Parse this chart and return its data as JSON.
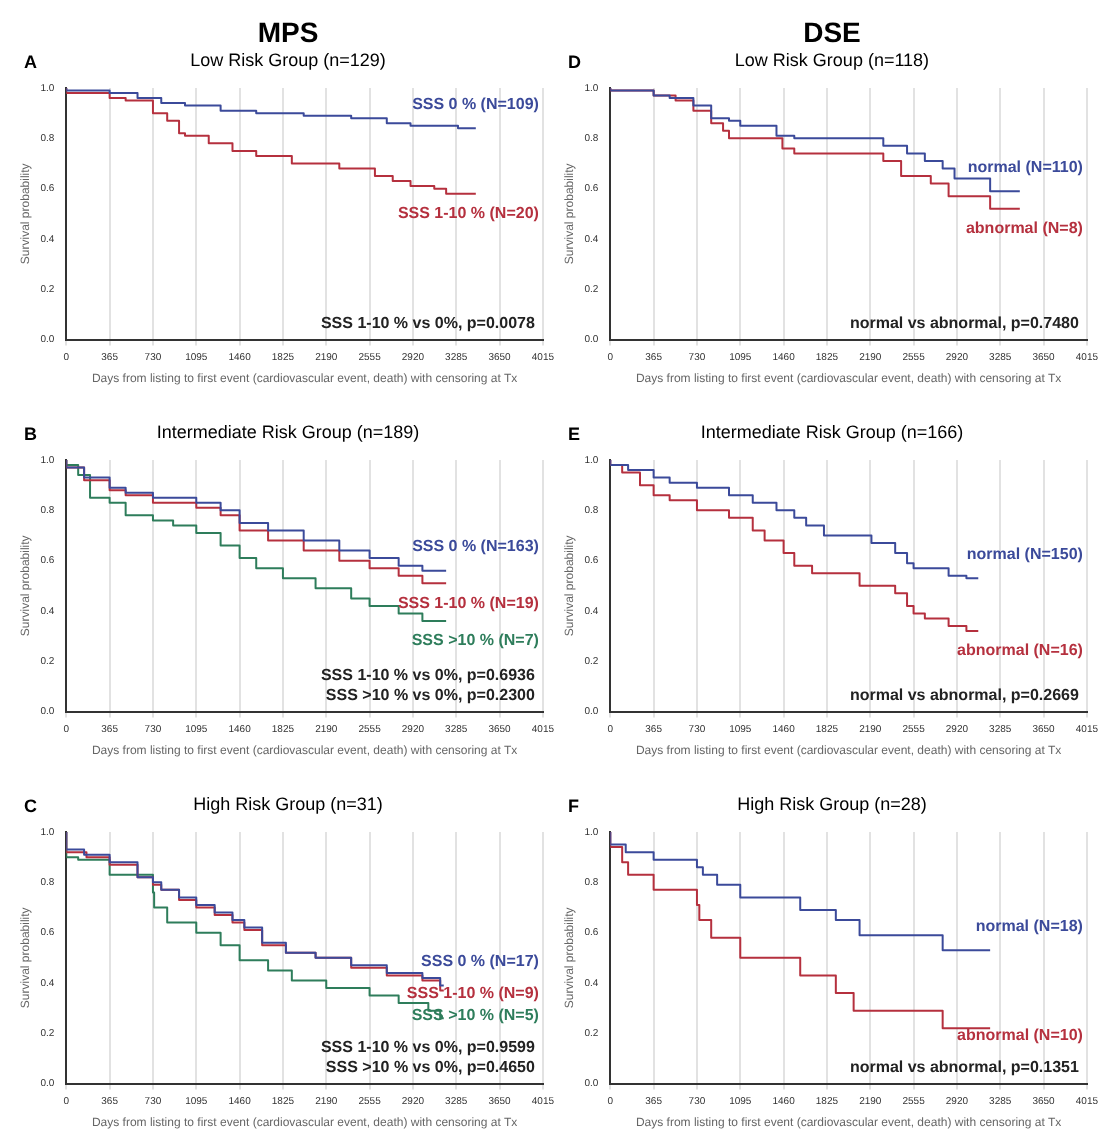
{
  "chart_data": [
    {
      "type": "step",
      "title": "MPS",
      "subtitle": "Low Risk Group (n=129)",
      "xlabel": "Days from listing to first event (cardiovascular event, death) with censoring at Tx",
      "ylabel": "Survival probability",
      "annotations": [
        "A",
        "SSS 1-10 % vs 0%, p=0.0078"
      ],
      "xlim": [
        0,
        4015
      ],
      "xticks": [
        0,
        365,
        730,
        1095,
        1460,
        1825,
        2190,
        2555,
        2920,
        3285,
        3650,
        4015
      ],
      "ylim": [
        0,
        1
      ],
      "yticks": [
        {
          "value": 0,
          "label": "0.0"
        },
        {
          "value": 0.2,
          "label": "0.2"
        },
        {
          "value": 0.4,
          "label": "0.4"
        },
        {
          "value": 0.6,
          "label": "0.6"
        },
        {
          "value": 0.8,
          "label": "0.8"
        },
        {
          "value": 1,
          "label": "1.0"
        }
      ],
      "grid": "x",
      "series": [
        {
          "name": "SSS 0 % (N=109)",
          "color": "#3b4a9a",
          "x": [
            0,
            365,
            600,
            800,
            1000,
            1300,
            1600,
            2000,
            2400,
            2700,
            2900,
            3100,
            3300,
            3450
          ],
          "values": [
            1,
            0.99,
            0.98,
            0.96,
            0.94,
            0.93,
            0.91,
            0.9,
            0.89,
            0.88,
            0.86,
            0.85,
            0.85,
            0.84
          ]
        },
        {
          "name": "SSS 1-10 % (N=20)",
          "color": "#b5303e",
          "x": [
            0,
            365,
            500,
            730,
            850,
            950,
            1000,
            1200,
            1400,
            1600,
            1900,
            2300,
            2600,
            2750,
            2900,
            3100,
            3200,
            3450
          ],
          "values": [
            1,
            0.98,
            0.96,
            0.95,
            0.9,
            0.87,
            0.82,
            0.81,
            0.78,
            0.75,
            0.73,
            0.7,
            0.68,
            0.65,
            0.63,
            0.61,
            0.6,
            0.58
          ]
        }
      ]
    },
    {
      "type": "step",
      "title": "DSE",
      "subtitle": "Low Risk Group (n=118)",
      "xlabel": "Days from listing to first event (cardiovascular event, death) with censoring at Tx",
      "ylabel": "Survival probability",
      "annotations": [
        "D",
        "normal vs abnormal, p=0.7480"
      ],
      "xlim": [
        0,
        4015
      ],
      "xticks": [
        0,
        365,
        730,
        1095,
        1460,
        1825,
        2190,
        2555,
        2920,
        3285,
        3650,
        4015
      ],
      "ylim": [
        0,
        1
      ],
      "yticks": [
        {
          "value": 0,
          "label": "0.0"
        },
        {
          "value": 0.2,
          "label": "0.2"
        },
        {
          "value": 0.4,
          "label": "0.4"
        },
        {
          "value": 0.6,
          "label": "0.6"
        },
        {
          "value": 0.8,
          "label": "0.8"
        },
        {
          "value": 1,
          "label": "1.0"
        }
      ],
      "grid": "x",
      "series": [
        {
          "name": "normal (N=110)",
          "color": "#3b4a9a",
          "x": [
            0,
            365,
            500,
            700,
            850,
            1000,
            1095,
            1400,
            1550,
            2300,
            2500,
            2650,
            2800,
            2900,
            3200,
            3450
          ],
          "values": [
            1,
            0.99,
            0.97,
            0.96,
            0.93,
            0.88,
            0.87,
            0.85,
            0.81,
            0.8,
            0.77,
            0.74,
            0.71,
            0.68,
            0.64,
            0.59
          ]
        },
        {
          "name": "abnormal (N=8)",
          "color": "#b5303e",
          "x": [
            0,
            365,
            550,
            700,
            850,
            950,
            1000,
            1450,
            1550,
            2300,
            2450,
            2700,
            2850,
            3200,
            3450
          ],
          "values": [
            1,
            0.99,
            0.97,
            0.95,
            0.91,
            0.86,
            0.83,
            0.8,
            0.76,
            0.74,
            0.71,
            0.65,
            0.62,
            0.57,
            0.52
          ]
        }
      ]
    },
    {
      "type": "step",
      "subtitle": "Intermediate Risk Group (n=189)",
      "xlabel": "Days from listing to first event (cardiovascular event, death) with censoring at Tx",
      "ylabel": "Survival probability",
      "annotations": [
        "B",
        "SSS 1-10 % vs 0%, p=0.6936",
        "SSS >10 % vs 0%, p=0.2300"
      ],
      "xlim": [
        0,
        4015
      ],
      "xticks": [
        0,
        365,
        730,
        1095,
        1460,
        1825,
        2190,
        2555,
        2920,
        3285,
        3650,
        4015
      ],
      "ylim": [
        0,
        1
      ],
      "yticks": [
        {
          "value": 0,
          "label": "0.0"
        },
        {
          "value": 0.2,
          "label": "0.2"
        },
        {
          "value": 0.4,
          "label": "0.4"
        },
        {
          "value": 0.6,
          "label": "0.6"
        },
        {
          "value": 0.8,
          "label": "0.8"
        },
        {
          "value": 1,
          "label": "1.0"
        }
      ],
      "grid": "x",
      "series": [
        {
          "name": "SSS 0 % (N=163)",
          "color": "#3b4a9a",
          "x": [
            0,
            150,
            365,
            500,
            730,
            1095,
            1300,
            1460,
            1700,
            2000,
            2300,
            2555,
            2800,
            3000,
            3200
          ],
          "values": [
            1,
            0.97,
            0.93,
            0.89,
            0.87,
            0.85,
            0.83,
            0.8,
            0.75,
            0.72,
            0.68,
            0.64,
            0.61,
            0.58,
            0.56
          ]
        },
        {
          "name": "SSS 1-10 % (N=19)",
          "color": "#b5303e",
          "x": [
            0,
            150,
            365,
            500,
            730,
            1095,
            1300,
            1460,
            1700,
            2000,
            2300,
            2555,
            2800,
            3000,
            3200
          ],
          "values": [
            1,
            0.97,
            0.92,
            0.88,
            0.86,
            0.83,
            0.81,
            0.78,
            0.72,
            0.68,
            0.64,
            0.6,
            0.57,
            0.54,
            0.51
          ]
        },
        {
          "name": "SSS >10 % (N=7)",
          "color": "#2e7d5b",
          "x": [
            0,
            100,
            200,
            365,
            500,
            730,
            900,
            1095,
            1300,
            1460,
            1600,
            1825,
            2100,
            2400,
            2555,
            2800,
            3000,
            3200
          ],
          "values": [
            1,
            0.98,
            0.94,
            0.85,
            0.83,
            0.78,
            0.76,
            0.74,
            0.71,
            0.66,
            0.61,
            0.57,
            0.53,
            0.49,
            0.45,
            0.42,
            0.39,
            0.36
          ]
        }
      ]
    },
    {
      "type": "step",
      "subtitle": "Intermediate Risk Group (n=166)",
      "xlabel": "Days from listing to first event (cardiovascular event, death) with censoring at Tx",
      "ylabel": "Survival probability",
      "annotations": [
        "E",
        "normal vs abnormal, p=0.2669"
      ],
      "xlim": [
        0,
        4015
      ],
      "xticks": [
        0,
        365,
        730,
        1095,
        1460,
        1825,
        2190,
        2555,
        2920,
        3285,
        3650,
        4015
      ],
      "ylim": [
        0,
        1
      ],
      "yticks": [
        {
          "value": 0,
          "label": "0.0"
        },
        {
          "value": 0.2,
          "label": "0.2"
        },
        {
          "value": 0.4,
          "label": "0.4"
        },
        {
          "value": 0.6,
          "label": "0.6"
        },
        {
          "value": 0.8,
          "label": "0.8"
        },
        {
          "value": 1,
          "label": "1.0"
        }
      ],
      "grid": "x",
      "series": [
        {
          "name": "normal (N=150)",
          "color": "#3b4a9a",
          "x": [
            0,
            150,
            365,
            500,
            730,
            1000,
            1200,
            1400,
            1550,
            1650,
            1800,
            2200,
            2400,
            2500,
            2555,
            2850,
            3000,
            3100
          ],
          "values": [
            1,
            0.98,
            0.96,
            0.93,
            0.91,
            0.89,
            0.86,
            0.83,
            0.8,
            0.77,
            0.74,
            0.7,
            0.67,
            0.63,
            0.59,
            0.57,
            0.54,
            0.53
          ]
        },
        {
          "name": "abnormal (N=16)",
          "color": "#b5303e",
          "x": [
            0,
            100,
            250,
            365,
            500,
            730,
            1000,
            1200,
            1300,
            1460,
            1550,
            1700,
            2100,
            2400,
            2500,
            2555,
            2650,
            2850,
            3000,
            3100
          ],
          "values": [
            1,
            0.98,
            0.95,
            0.9,
            0.86,
            0.84,
            0.8,
            0.77,
            0.72,
            0.68,
            0.63,
            0.58,
            0.55,
            0.5,
            0.47,
            0.42,
            0.39,
            0.37,
            0.34,
            0.32
          ]
        }
      ]
    },
    {
      "type": "step",
      "subtitle": "High Risk Group (n=31)",
      "xlabel": "Days from listing to first event (cardiovascular event, death) with censoring at Tx",
      "ylabel": "Survival probability",
      "annotations": [
        "C",
        "SSS 1-10 % vs 0%, p=0.9599",
        "SSS >10 % vs 0%, p=0.4650"
      ],
      "xlim": [
        0,
        4015
      ],
      "xticks": [
        0,
        365,
        730,
        1095,
        1460,
        1825,
        2190,
        2555,
        2920,
        3285,
        3650,
        4015
      ],
      "ylim": [
        0,
        1
      ],
      "yticks": [
        {
          "value": 0,
          "label": "0.0"
        },
        {
          "value": 0.2,
          "label": "0.2"
        },
        {
          "value": 0.4,
          "label": "0.4"
        },
        {
          "value": 0.6,
          "label": "0.6"
        },
        {
          "value": 0.8,
          "label": "0.8"
        },
        {
          "value": 1,
          "label": "1.0"
        }
      ],
      "grid": "x",
      "series": [
        {
          "name": "SSS 0 % (N=17)",
          "color": "#3b4a9a",
          "x": [
            0,
            150,
            365,
            600,
            730,
            800,
            950,
            1095,
            1250,
            1400,
            1500,
            1650,
            1850,
            2100,
            2400,
            2700,
            3000,
            3150,
            3180
          ],
          "values": [
            1,
            0.93,
            0.91,
            0.88,
            0.82,
            0.8,
            0.77,
            0.74,
            0.71,
            0.68,
            0.65,
            0.62,
            0.56,
            0.52,
            0.5,
            0.47,
            0.44,
            0.42,
            0.39
          ]
        },
        {
          "name": "SSS 1-10 % (N=9)",
          "color": "#b5303e",
          "x": [
            0,
            170,
            365,
            600,
            730,
            800,
            950,
            1095,
            1250,
            1400,
            1500,
            1650,
            1850,
            2100,
            2400,
            2700,
            3000,
            3150,
            3180
          ],
          "values": [
            1,
            0.92,
            0.9,
            0.87,
            0.82,
            0.79,
            0.77,
            0.73,
            0.7,
            0.67,
            0.64,
            0.61,
            0.55,
            0.52,
            0.5,
            0.46,
            0.43,
            0.41,
            0.37
          ]
        },
        {
          "name": "SSS >10 % (N=5)",
          "color": "#2e7d5b",
          "x": [
            0,
            100,
            365,
            730,
            740,
            850,
            1095,
            1300,
            1460,
            1700,
            1900,
            2190,
            2555,
            2800,
            3050,
            3150,
            3180
          ],
          "values": [
            1,
            0.9,
            0.89,
            0.83,
            0.76,
            0.7,
            0.64,
            0.6,
            0.55,
            0.49,
            0.45,
            0.41,
            0.38,
            0.35,
            0.32,
            0.29,
            0.26
          ]
        }
      ]
    },
    {
      "type": "step",
      "subtitle": "High Risk Group (n=28)",
      "xlabel": "Days from listing to first event (cardiovascular event, death) with censoring at Tx",
      "ylabel": "Survival probability",
      "annotations": [
        "F",
        "normal vs abnormal, p=0.1351"
      ],
      "xlim": [
        0,
        4015
      ],
      "xticks": [
        0,
        365,
        730,
        1095,
        1460,
        1825,
        2190,
        2555,
        2920,
        3285,
        3650,
        4015
      ],
      "ylim": [
        0,
        1
      ],
      "yticks": [
        {
          "value": 0,
          "label": "0.0"
        },
        {
          "value": 0.2,
          "label": "0.2"
        },
        {
          "value": 0.4,
          "label": "0.4"
        },
        {
          "value": 0.6,
          "label": "0.6"
        },
        {
          "value": 0.8,
          "label": "0.8"
        },
        {
          "value": 1,
          "label": "1.0"
        }
      ],
      "grid": "x",
      "series": [
        {
          "name": "normal (N=18)",
          "color": "#3b4a9a",
          "x": [
            0,
            130,
            365,
            730,
            780,
            900,
            1095,
            1600,
            1900,
            2100,
            2800,
            3200
          ],
          "values": [
            1,
            0.95,
            0.92,
            0.89,
            0.86,
            0.83,
            0.79,
            0.74,
            0.69,
            0.65,
            0.59,
            0.53
          ]
        },
        {
          "name": "abnormal (N=10)",
          "color": "#b5303e",
          "x": [
            0,
            100,
            150,
            365,
            730,
            750,
            850,
            1095,
            1600,
            1900,
            2050,
            2800,
            3200
          ],
          "values": [
            1,
            0.94,
            0.88,
            0.83,
            0.77,
            0.71,
            0.65,
            0.58,
            0.5,
            0.43,
            0.36,
            0.29,
            0.22
          ]
        }
      ]
    }
  ]
}
